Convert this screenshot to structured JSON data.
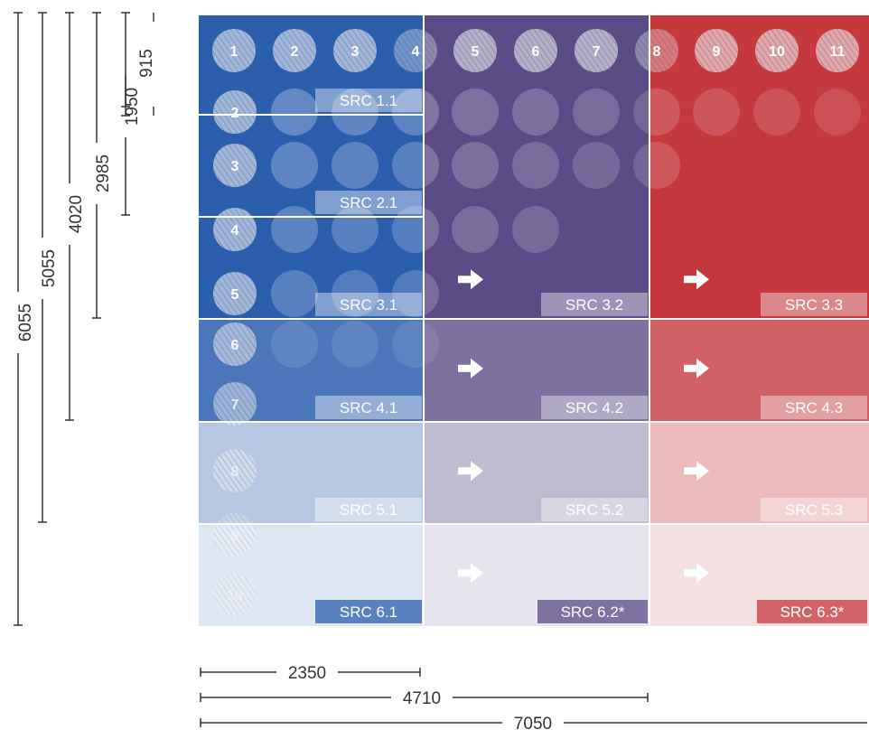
{
  "colors": {
    "blue": "#2b5fae",
    "purple": "#5a4c86",
    "red": "#c5393d",
    "label_box": "#d8d8e6",
    "grid_line": "#ffffff",
    "dim_line": "#333333"
  },
  "columns": {
    "numbers": [
      "1",
      "2",
      "3",
      "4",
      "5",
      "6",
      "7",
      "8",
      "9",
      "10",
      "11"
    ]
  },
  "rows": {
    "numbers": [
      "2",
      "3",
      "4",
      "5",
      "6",
      "7",
      "8",
      "9",
      "10"
    ]
  },
  "cells": [
    {
      "label": "SRC 1.1",
      "region": "blue",
      "opacity": 1.0
    },
    {
      "label": "SRC 2.1",
      "region": "blue",
      "opacity": 1.0
    },
    {
      "label": "SRC 3.1",
      "region": "blue",
      "opacity": 1.0
    },
    {
      "label": "SRC 3.2",
      "region": "purple",
      "opacity": 1.0,
      "arrow": true
    },
    {
      "label": "SRC 3.3",
      "region": "red",
      "opacity": 1.0,
      "arrow": true
    },
    {
      "label": "SRC 4.1",
      "region": "blue",
      "opacity": 0.85
    },
    {
      "label": "SRC 4.2",
      "region": "purple",
      "opacity": 0.8,
      "arrow": true
    },
    {
      "label": "SRC 4.3",
      "region": "red",
      "opacity": 0.8,
      "arrow": true
    },
    {
      "label": "SRC 5.1",
      "region": "blue",
      "opacity": 0.35
    },
    {
      "label": "SRC 5.2",
      "region": "purple",
      "opacity": 0.38,
      "arrow": true
    },
    {
      "label": "SRC 5.3",
      "region": "red",
      "opacity": 0.35,
      "arrow": true
    },
    {
      "label": "SRC 6.1",
      "region": "blue",
      "opacity": 0.15
    },
    {
      "label": "SRC 6.2*",
      "region": "purple",
      "opacity": 0.15,
      "arrow": true
    },
    {
      "label": "SRC 6.3*",
      "region": "red",
      "opacity": 0.15,
      "arrow": true
    }
  ],
  "dimensions": {
    "vertical": [
      "915",
      "1950",
      "2985",
      "4020",
      "5055",
      "6055"
    ],
    "horizontal": [
      "2350",
      "4710",
      "7050"
    ]
  }
}
